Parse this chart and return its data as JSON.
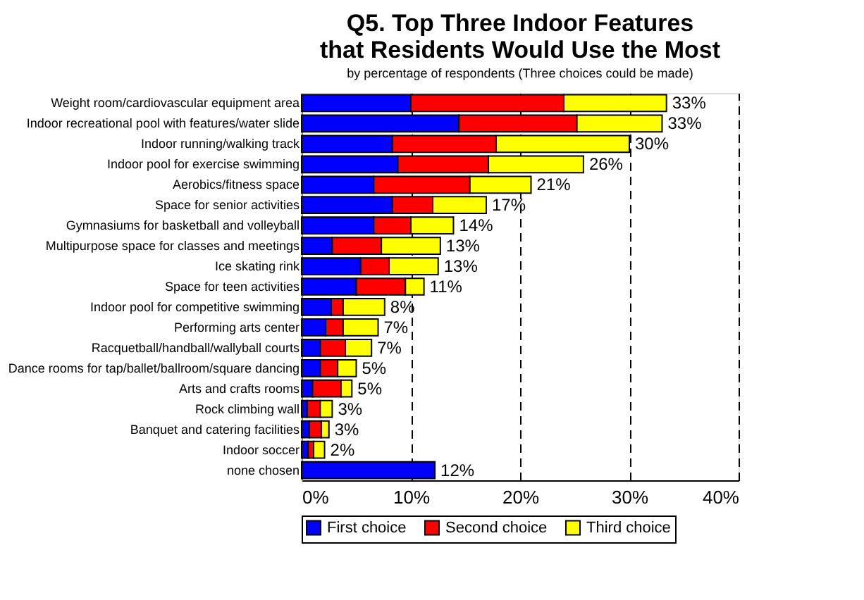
{
  "chart_data": {
    "type": "bar",
    "orientation": "horizontal",
    "stacked": true,
    "title": "Q5. Top Three Indoor Features\nthat Residents Would Use the Most",
    "subtitle": "by percentage of respondents (Three choices could be made)",
    "categories": [
      "Weight room/cardiovascular equipment area",
      "Indoor recreational pool with features/water slide",
      "Indoor running/walking track",
      "Indoor pool for exercise swimming",
      "Aerobics/fitness space",
      "Space for senior activities",
      "Gymnasiums for basketball and volleyball",
      "Multipurpose space for classes and meetings",
      "Ice skating rink",
      "Space for teen activities",
      "Indoor pool for competitive swimming",
      "Performing arts center",
      "Racquetball/handball/wallyball courts",
      "Dance rooms for tap/ballet/ballroom/square dancing",
      "Arts and crafts rooms",
      "Rock climbing wall",
      "Banquet and catering facilities",
      "Indoor soccer",
      "none chosen"
    ],
    "series": [
      {
        "name": "First choice",
        "color": "#0000ff",
        "values": [
          10.0,
          14.4,
          8.3,
          8.8,
          6.6,
          8.3,
          6.6,
          2.8,
          5.4,
          5.0,
          2.7,
          2.2,
          1.7,
          1.7,
          1.0,
          0.5,
          0.7,
          0.6,
          12.2
        ]
      },
      {
        "name": "Second choice",
        "color": "#ff0000",
        "values": [
          14.0,
          10.8,
          9.5,
          8.3,
          8.8,
          3.7,
          3.4,
          4.5,
          2.6,
          4.5,
          1.1,
          1.6,
          2.3,
          1.6,
          2.6,
          1.2,
          1.1,
          0.5,
          null
        ]
      },
      {
        "name": "Third choice",
        "color": "#ffff00",
        "values": [
          9.4,
          7.8,
          12.2,
          8.7,
          5.6,
          4.9,
          3.9,
          5.4,
          4.5,
          1.7,
          3.8,
          3.2,
          2.4,
          1.7,
          1.0,
          1.1,
          0.7,
          1.0,
          null
        ]
      }
    ],
    "totals": [
      "33%",
      "33%",
      "30%",
      "26%",
      "21%",
      "17%",
      "14%",
      "13%",
      "13%",
      "11%",
      "8%",
      "7%",
      "7%",
      "5%",
      "5%",
      "3%",
      "3%",
      "2%",
      "12%"
    ],
    "xlim": [
      0,
      40
    ],
    "xticks": [
      {
        "value": 0,
        "label": "0%"
      },
      {
        "value": 10,
        "label": "10%"
      },
      {
        "value": 20,
        "label": "20%"
      },
      {
        "value": 30,
        "label": "30%"
      },
      {
        "value": 40,
        "label": "40%"
      }
    ],
    "grid": "x",
    "legend": "bottom"
  }
}
